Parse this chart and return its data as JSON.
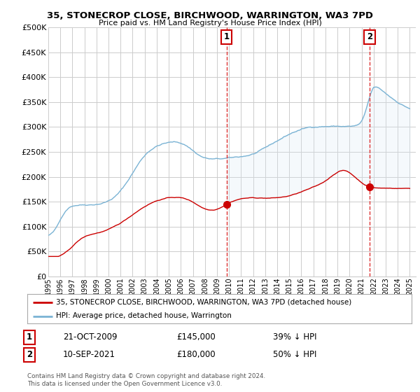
{
  "title": "35, STONECROP CLOSE, BIRCHWOOD, WARRINGTON, WA3 7PD",
  "subtitle": "Price paid vs. HM Land Registry's House Price Index (HPI)",
  "ylabel_ticks": [
    "£0",
    "£50K",
    "£100K",
    "£150K",
    "£200K",
    "£250K",
    "£300K",
    "£350K",
    "£400K",
    "£450K",
    "£500K"
  ],
  "ytick_values": [
    0,
    50000,
    100000,
    150000,
    200000,
    250000,
    300000,
    350000,
    400000,
    450000,
    500000
  ],
  "ylim": [
    0,
    500000
  ],
  "xlim_start": 1995.3,
  "xlim_end": 2025.5,
  "xticks": [
    1995,
    1996,
    1997,
    1998,
    1999,
    2000,
    2001,
    2002,
    2003,
    2004,
    2005,
    2006,
    2007,
    2008,
    2009,
    2010,
    2011,
    2012,
    2013,
    2014,
    2015,
    2016,
    2017,
    2018,
    2019,
    2020,
    2021,
    2022,
    2023,
    2024,
    2025
  ],
  "hpi_color": "#7ab3d4",
  "hpi_fill_color": "#daeaf5",
  "price_color": "#cc0000",
  "marker1_year": 2009.8,
  "marker1_price": 145000,
  "marker1_label": "1",
  "marker1_date": "21-OCT-2009",
  "marker1_amount": "£145,000",
  "marker1_pct": "39% ↓ HPI",
  "marker2_year": 2021.67,
  "marker2_price": 180000,
  "marker2_label": "2",
  "marker2_date": "10-SEP-2021",
  "marker2_amount": "£180,000",
  "marker2_pct": "50% ↓ HPI",
  "legend_line1": "35, STONECROP CLOSE, BIRCHWOOD, WARRINGTON, WA3 7PD (detached house)",
  "legend_line2": "HPI: Average price, detached house, Warrington",
  "footer": "Contains HM Land Registry data © Crown copyright and database right 2024.\nThis data is licensed under the Open Government Licence v3.0.",
  "background_color": "#ffffff",
  "grid_color": "#cccccc",
  "vline_color": "#dd3333"
}
